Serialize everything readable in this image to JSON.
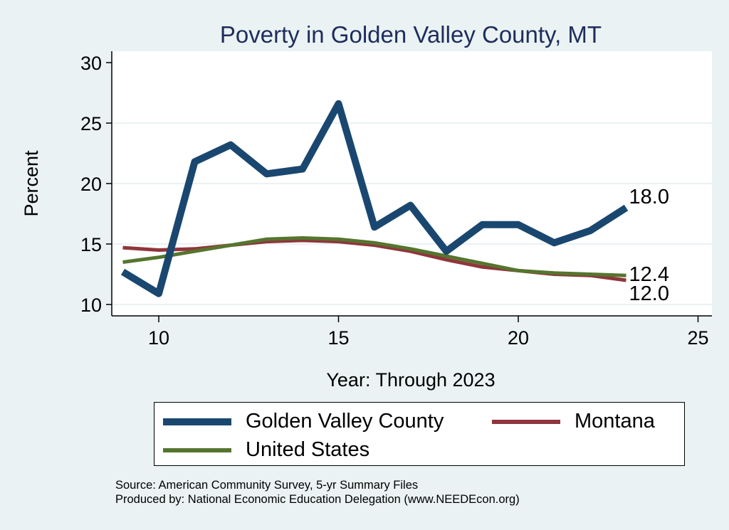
{
  "chart_data": {
    "type": "line",
    "title": "Poverty in Golden Valley County, MT",
    "xlabel": "Year: Through 2023",
    "ylabel": "Percent",
    "xlim": [
      8.7,
      25.4
    ],
    "ylim": [
      9.0,
      31.0
    ],
    "xticks": [
      10,
      15,
      20,
      25
    ],
    "yticks": [
      10,
      15,
      20,
      25,
      30
    ],
    "grid": true,
    "x": [
      9,
      10,
      11,
      12,
      13,
      14,
      15,
      16,
      17,
      18,
      19,
      20,
      21,
      22,
      23
    ],
    "series": [
      {
        "name": "Golden Valley County",
        "color": "#1a476f",
        "width": 10,
        "values": [
          12.7,
          10.9,
          21.8,
          23.2,
          20.8,
          21.2,
          26.6,
          16.4,
          18.2,
          14.4,
          16.6,
          16.6,
          15.1,
          16.1,
          18.0
        ],
        "end_label": "18.0"
      },
      {
        "name": "Montana",
        "color": "#90353b",
        "width": 5,
        "values": [
          14.7,
          14.5,
          14.6,
          14.9,
          15.2,
          15.3,
          15.2,
          14.9,
          14.4,
          13.7,
          13.1,
          12.8,
          12.5,
          12.4,
          12.0
        ],
        "end_label": "12.0"
      },
      {
        "name": "United States",
        "color": "#55752f",
        "width": 5,
        "values": [
          13.5,
          13.9,
          14.4,
          14.9,
          15.4,
          15.5,
          15.4,
          15.1,
          14.6,
          14.0,
          13.4,
          12.8,
          12.6,
          12.5,
          12.4
        ],
        "end_label": "12.4"
      }
    ],
    "legend_position": "bottom"
  },
  "source": {
    "line1": "Source: American Community Survey, 5-yr Summary Files",
    "line2": "Produced by: National Economic Education Delegation (www.NEEDEcon.org)"
  }
}
